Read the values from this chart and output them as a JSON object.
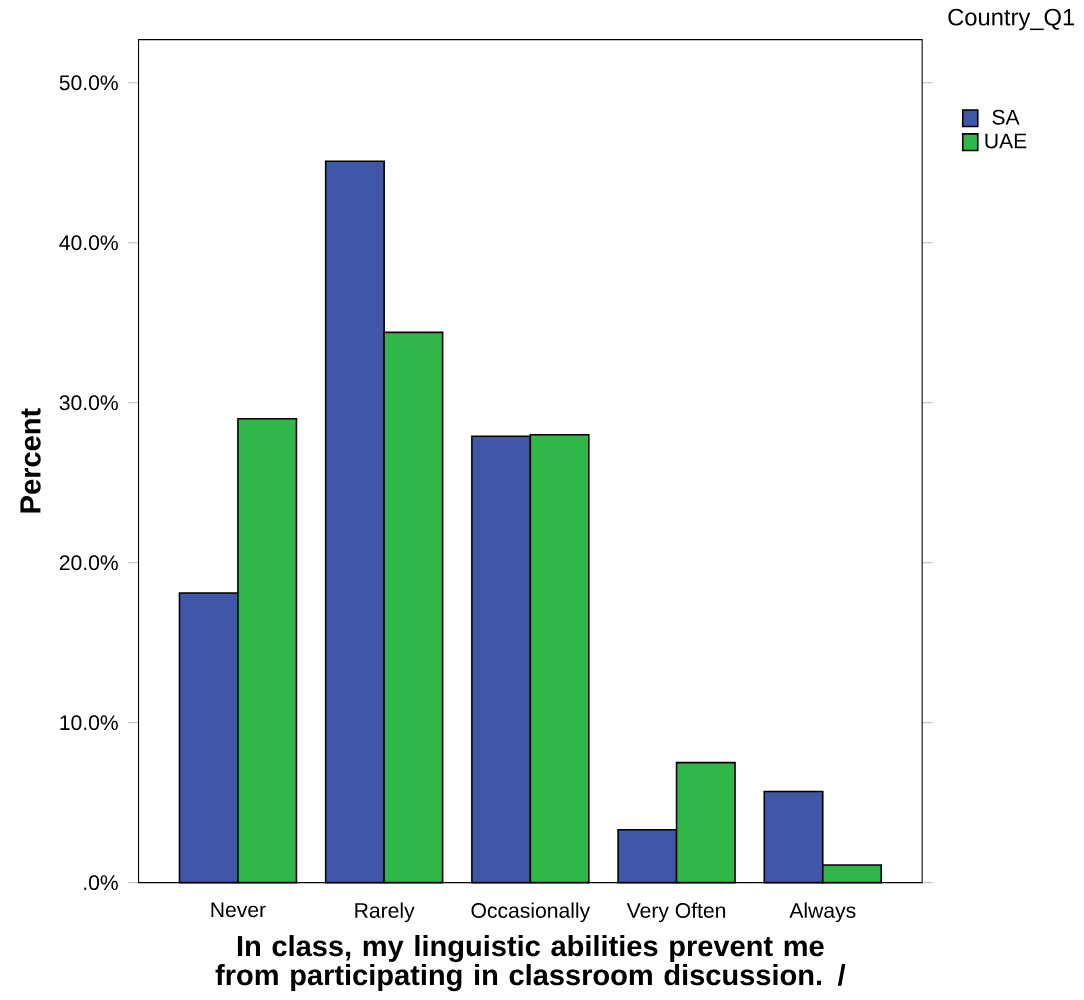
{
  "chart_data": {
    "type": "bar",
    "xlabel": "In class, my linguistic abilities prevent me from participating in classroom discussion. /",
    "ylabel": "Percent",
    "legend_title": "Country_Q1",
    "categories": [
      "Never",
      "Rarely",
      "Occasionally",
      "Very Often",
      "Always"
    ],
    "series": [
      {
        "name": "SA",
        "color": "#3f57a8",
        "values": [
          18.1,
          45.1,
          27.9,
          3.3,
          5.7
        ]
      },
      {
        "name": "UAE",
        "color": "#2fb74a",
        "values": [
          29.0,
          34.4,
          28.0,
          7.5,
          1.1
        ]
      }
    ],
    "ylim": [
      0,
      52.7
    ],
    "yticks": [
      {
        "value": 0,
        "label": ".0%"
      },
      {
        "value": 10,
        "label": "10.0%"
      },
      {
        "value": 20,
        "label": "20.0%"
      },
      {
        "value": 30,
        "label": "30.0%"
      },
      {
        "value": 40,
        "label": "40.0%"
      },
      {
        "value": 50,
        "label": "50.0%"
      }
    ],
    "legend": "top right",
    "grid": false
  }
}
